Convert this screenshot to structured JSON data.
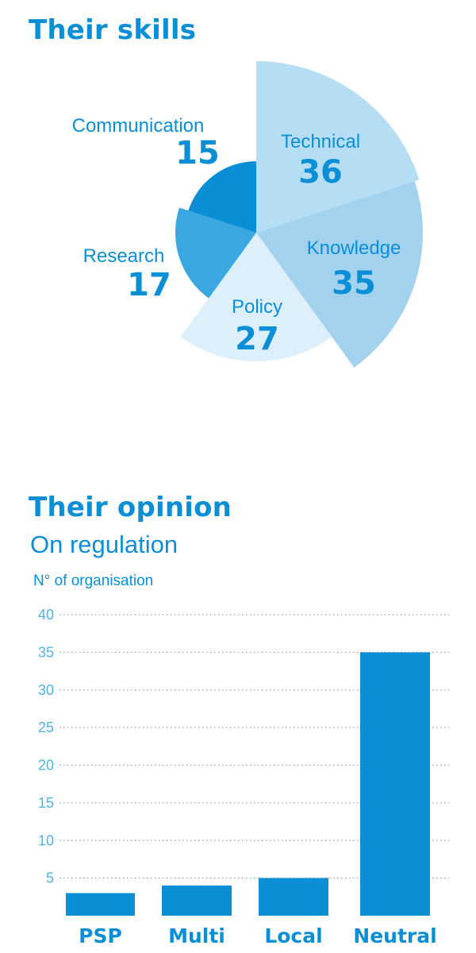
{
  "skills": {
    "title": "Their skills"
  },
  "opinion": {
    "title": "Their opinion",
    "subtitle": "On regulation",
    "ylabel": "N° of organisation"
  },
  "chart_data": [
    {
      "type": "pie",
      "title": "Their skills",
      "categories": [
        "Technical",
        "Knowledge",
        "Policy",
        "Research",
        "Communication"
      ],
      "values": [
        36,
        35,
        27,
        17,
        15
      ],
      "colors": [
        "#b5def4",
        "#a3d2ef",
        "#dcefFb",
        "#3ba7e0",
        "#0a8fd6"
      ]
    },
    {
      "type": "bar",
      "title": "Their opinion",
      "subtitle": "On regulation",
      "ylabel": "N° of organisation",
      "categories": [
        "PSP",
        "Multi",
        "Local",
        "Neutral"
      ],
      "values": [
        3,
        4,
        5,
        35
      ],
      "ylim": [
        0,
        40
      ],
      "yticks": [
        5,
        10,
        15,
        20,
        25,
        30,
        35,
        40
      ],
      "grid": "horizontal-dotted",
      "bar_color": "#0a8fd6"
    }
  ]
}
